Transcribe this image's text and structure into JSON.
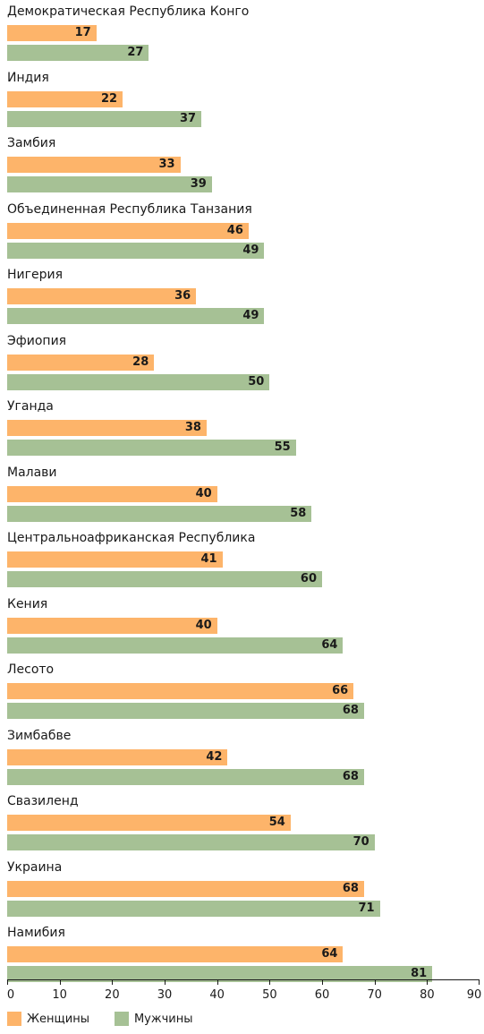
{
  "chart_data": {
    "type": "bar",
    "orientation": "horizontal",
    "categories": [
      "Демократическая Республика Конго",
      "Индия",
      "Замбия",
      "Объединенная Республика Танзания",
      "Нигерия",
      "Эфиопия",
      "Уганда",
      "Малави",
      "Центральноафриканская Республика",
      "Кения",
      "Лесото",
      "Зимбабве",
      "Свазиленд",
      "Украина",
      "Намибия"
    ],
    "series": [
      {
        "name": "Женщины",
        "color": "#fdb46a",
        "values": [
          17,
          22,
          33,
          46,
          36,
          28,
          38,
          40,
          41,
          40,
          66,
          42,
          54,
          68,
          64
        ]
      },
      {
        "name": "Мужчины",
        "color": "#a6c195",
        "values": [
          27,
          37,
          39,
          49,
          49,
          50,
          55,
          58,
          60,
          64,
          68,
          68,
          70,
          71,
          81
        ]
      }
    ],
    "xlim": [
      0,
      90
    ],
    "xticks": [
      0,
      10,
      20,
      30,
      40,
      50,
      60,
      70,
      80,
      90
    ],
    "grid": false,
    "legend_position": "bottom-left"
  }
}
